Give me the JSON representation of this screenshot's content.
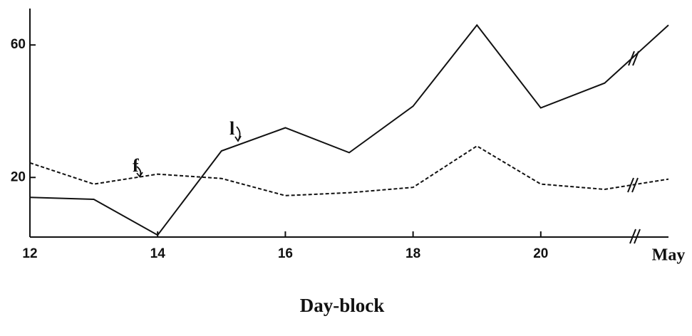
{
  "chart_data": {
    "type": "line",
    "xlabel": "Day-block",
    "x_end_label": "May",
    "x": [
      12,
      13,
      14,
      15,
      16,
      17,
      18,
      19,
      20,
      21,
      22
    ],
    "xlim": [
      12,
      22
    ],
    "xticks": [
      12,
      14,
      16,
      18,
      20
    ],
    "ylim": [
      2,
      71
    ],
    "yticks": [
      20,
      60
    ],
    "series": [
      {
        "name": "l",
        "color": "#111111",
        "dash": false,
        "values": [
          14,
          13.4,
          2.6,
          28,
          35,
          27.5,
          41.5,
          66,
          41,
          48.5,
          66
        ]
      },
      {
        "name": "f",
        "color": "#111111",
        "dash": true,
        "values": [
          24.4,
          18,
          21,
          19.7,
          14.5,
          15.4,
          17,
          29.5,
          18,
          16.4,
          19.5
        ]
      }
    ]
  }
}
